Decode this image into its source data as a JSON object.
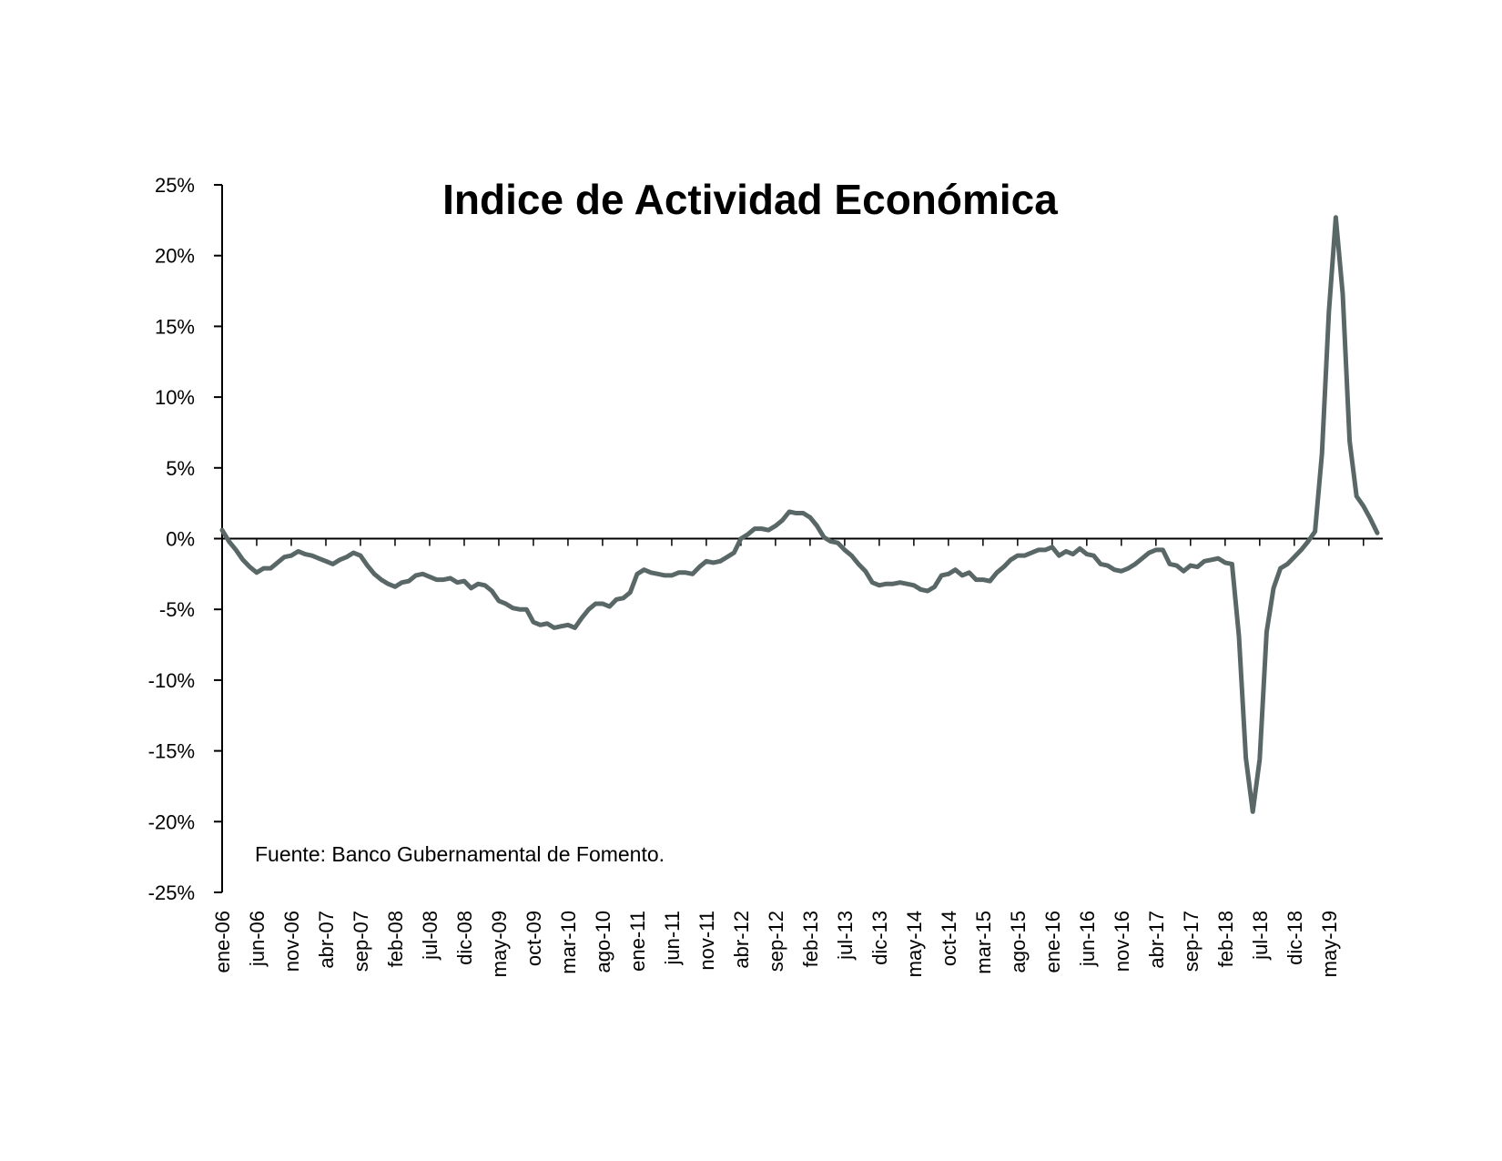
{
  "chart_data": {
    "type": "line",
    "title": "Indice de Actividad Económica",
    "source": "Fuente: Banco Gubernamental de Fomento.",
    "xlabel": "",
    "ylabel": "",
    "y_format": "percent",
    "ylim": [
      -25,
      25
    ],
    "y_ticks": [
      25,
      20,
      15,
      10,
      5,
      0,
      -5,
      -10,
      -15,
      -20,
      -25
    ],
    "y_tick_labels": [
      "25%",
      "20%",
      "15%",
      "10%",
      "5%",
      "0%",
      "-5%",
      "-10%",
      "-15%",
      "-20%",
      "-25%"
    ],
    "x_start": "ene-06",
    "x_tick_labels": [
      "ene-06",
      "jun-06",
      "nov-06",
      "abr-07",
      "sep-07",
      "feb-08",
      "jul-08",
      "dic-08",
      "may-09",
      "oct-09",
      "mar-10",
      "ago-10",
      "ene-11",
      "jun-11",
      "nov-11",
      "abr-12",
      "sep-12",
      "feb-13",
      "jul-13",
      "dic-13",
      "may-14",
      "oct-14",
      "mar-15",
      "ago-15",
      "ene-16",
      "jun-16",
      "nov-16",
      "abr-17",
      "sep-17",
      "feb-18",
      "jul-18",
      "dic-18",
      "may-19"
    ],
    "grid": false,
    "legend": "none",
    "colors": {
      "line": "#5a6767",
      "axis": "#000000"
    },
    "series": [
      {
        "values": [
          0.6,
          -0.2,
          -0.8,
          -1.5,
          -2.0,
          -2.4,
          -2.1,
          -2.1,
          -1.7,
          -1.3,
          -1.2,
          -0.9,
          -1.1,
          -1.2,
          -1.4,
          -1.6,
          -1.8,
          -1.5,
          -1.3,
          -1.0,
          -1.2,
          -1.9,
          -2.5,
          -2.9,
          -3.2,
          -3.4,
          -3.1,
          -3.0,
          -2.6,
          -2.5,
          -2.7,
          -2.9,
          -2.9,
          -2.8,
          -3.1,
          -3.0,
          -3.5,
          -3.2,
          -3.3,
          -3.7,
          -4.4,
          -4.6,
          -4.9,
          -5.0,
          -5.0,
          -5.9,
          -6.1,
          -6.0,
          -6.3,
          -6.2,
          -6.1,
          -6.3,
          -5.6,
          -5.0,
          -4.6,
          -4.6,
          -4.8,
          -4.3,
          -4.2,
          -3.8,
          -2.5,
          -2.2,
          -2.4,
          -2.5,
          -2.6,
          -2.6,
          -2.4,
          -2.4,
          -2.5,
          -2.0,
          -1.6,
          -1.7,
          -1.6,
          -1.3,
          -1.0,
          0.0,
          0.3,
          0.7,
          0.7,
          0.6,
          0.9,
          1.3,
          1.9,
          1.8,
          1.8,
          1.5,
          0.9,
          0.1,
          -0.2,
          -0.3,
          -0.8,
          -1.2,
          -1.8,
          -2.3,
          -3.1,
          -3.3,
          -3.2,
          -3.2,
          -3.1,
          -3.2,
          -3.3,
          -3.6,
          -3.7,
          -3.4,
          -2.6,
          -2.5,
          -2.2,
          -2.6,
          -2.4,
          -2.9,
          -2.9,
          -3.0,
          -2.4,
          -2.0,
          -1.5,
          -1.2,
          -1.2,
          -1.0,
          -0.8,
          -0.8,
          -0.6,
          -1.2,
          -0.9,
          -1.1,
          -0.7,
          -1.1,
          -1.2,
          -1.8,
          -1.9,
          -2.2,
          -2.3,
          -2.1,
          -1.8,
          -1.4,
          -1.0,
          -0.8,
          -0.8,
          -1.8,
          -1.9,
          -2.3,
          -1.9,
          -2.0,
          -1.6,
          -1.5,
          -1.4,
          -1.7,
          -1.8,
          -6.9,
          -15.5,
          -19.3,
          -15.6,
          -6.6,
          -3.5,
          -2.1,
          -1.8,
          -1.3,
          -0.8,
          -0.2,
          0.5,
          6.0,
          16.0,
          22.7,
          17.3,
          6.9,
          3.0,
          2.3,
          1.4,
          0.4
        ]
      }
    ]
  }
}
